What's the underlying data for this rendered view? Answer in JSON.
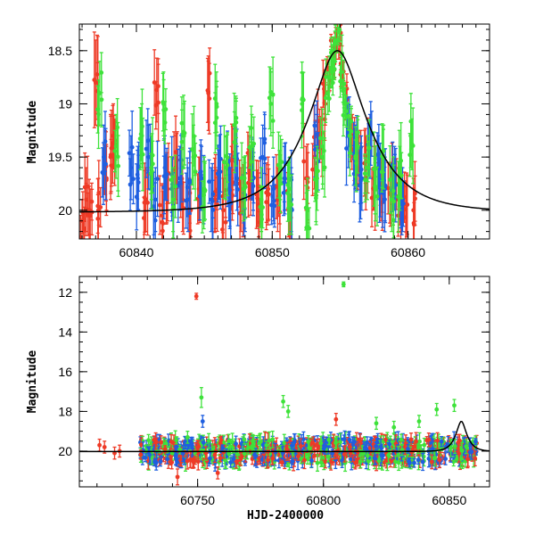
{
  "chart_data": [
    {
      "type": "scatter",
      "panel": "top",
      "title": "",
      "xlabel": "",
      "ylabel": "Magnitude",
      "xlim": [
        60835.8,
        60866
      ],
      "ylim": [
        20.27,
        18.25
      ],
      "y_inverted": true,
      "x_ticks": [
        60840,
        60850,
        60860
      ],
      "y_ticks": [
        18.5,
        19,
        19.5,
        20
      ],
      "x_tick_labels": [
        "60840",
        "60850",
        "60860"
      ],
      "y_tick_labels": [
        "18.5",
        "19",
        "19.5",
        "20"
      ],
      "grid": false,
      "legend": "none",
      "model_curve": {
        "color": "#000000",
        "baseline": 20.02,
        "peak_x": 60854.8,
        "peak_mag": 18.5,
        "description": "microlensing-like light curve fit"
      },
      "series": [
        {
          "color": "#ee3a26",
          "points": [
            [
              60836.0,
              20.1,
              0.2
            ],
            [
              60836.3,
              19.9,
              0.3
            ],
            [
              60836.6,
              20.05,
              0.25
            ],
            [
              60837.0,
              18.8,
              0.4
            ],
            [
              60837.2,
              20.0,
              0.3
            ],
            [
              60837.8,
              19.7,
              0.3
            ],
            [
              60838.1,
              19.5,
              0.4
            ],
            [
              60838.3,
              19.3,
              0.3
            ],
            [
              60840.7,
              19.9,
              0.3
            ],
            [
              60841.5,
              18.87,
              0.3
            ],
            [
              60841.9,
              20.05,
              0.3
            ],
            [
              60842.3,
              19.8,
              0.3
            ],
            [
              60842.9,
              19.6,
              0.3
            ],
            [
              60843.4,
              19.9,
              0.3
            ],
            [
              60844.0,
              20.0,
              0.25
            ],
            [
              60844.6,
              19.8,
              0.3
            ],
            [
              60845.3,
              18.9,
              0.35
            ],
            [
              60845.8,
              19.9,
              0.3
            ],
            [
              60846.4,
              20.0,
              0.3
            ],
            [
              60847.0,
              19.7,
              0.3
            ],
            [
              60847.7,
              19.9,
              0.3
            ],
            [
              60848.3,
              19.6,
              0.3
            ],
            [
              60849.0,
              19.95,
              0.3
            ],
            [
              60849.7,
              19.8,
              0.3
            ],
            [
              60850.4,
              19.9,
              0.3
            ],
            [
              60851.2,
              20.0,
              0.25
            ],
            [
              60852.5,
              19.7,
              0.3
            ],
            [
              60853.1,
              19.5,
              0.3
            ],
            [
              60853.5,
              19.3,
              0.25
            ],
            [
              60853.9,
              19.0,
              0.2
            ],
            [
              60854.2,
              18.75,
              0.1
            ],
            [
              60854.5,
              18.55,
              0.08
            ],
            [
              60854.7,
              18.5,
              0.08
            ],
            [
              60854.9,
              18.5,
              0.08
            ],
            [
              60855.2,
              18.7,
              0.1
            ],
            [
              60855.5,
              19.0,
              0.15
            ],
            [
              60855.9,
              19.3,
              0.2
            ],
            [
              60856.4,
              19.5,
              0.25
            ],
            [
              60856.9,
              19.6,
              0.3
            ],
            [
              60857.5,
              19.7,
              0.3
            ],
            [
              60858.0,
              19.8,
              0.3
            ],
            [
              60858.7,
              19.85,
              0.3
            ],
            [
              60859.3,
              19.9,
              0.3
            ],
            [
              60859.9,
              19.95,
              0.3
            ],
            [
              60860.4,
              20.0,
              0.3
            ]
          ]
        },
        {
          "color": "#1f5fe0",
          "points": [
            [
              60837.6,
              19.5,
              0.3
            ],
            [
              60839.6,
              19.6,
              0.3
            ],
            [
              60840.1,
              19.7,
              0.3
            ],
            [
              60840.9,
              19.5,
              0.3
            ],
            [
              60841.4,
              19.9,
              0.3
            ],
            [
              60842.1,
              19.6,
              0.3
            ],
            [
              60842.6,
              19.8,
              0.3
            ],
            [
              60843.2,
              19.7,
              0.3
            ],
            [
              60843.8,
              19.9,
              0.3
            ],
            [
              60844.8,
              19.7,
              0.3
            ],
            [
              60845.5,
              19.9,
              0.3
            ],
            [
              60846.1,
              19.6,
              0.3
            ],
            [
              60846.8,
              19.8,
              0.3
            ],
            [
              60847.4,
              19.7,
              0.3
            ],
            [
              60848.0,
              19.9,
              0.3
            ],
            [
              60848.6,
              19.7,
              0.3
            ],
            [
              60849.3,
              19.5,
              0.3
            ],
            [
              60850.1,
              19.8,
              0.3
            ],
            [
              60850.9,
              19.7,
              0.3
            ],
            [
              60851.4,
              19.9,
              0.3
            ],
            [
              60853.3,
              19.4,
              0.3
            ],
            [
              60855.6,
              19.3,
              0.3
            ],
            [
              60856.1,
              19.5,
              0.3
            ],
            [
              60856.6,
              19.7,
              0.3
            ],
            [
              60857.2,
              19.4,
              0.3
            ],
            [
              60857.8,
              19.6,
              0.3
            ],
            [
              60858.3,
              19.8,
              0.3
            ],
            [
              60859.0,
              19.7,
              0.3
            ],
            [
              60859.6,
              19.9,
              0.3
            ]
          ]
        },
        {
          "color": "#3ee23a",
          "points": [
            [
              60837.3,
              18.9,
              0.3
            ],
            [
              60838.5,
              19.4,
              0.3
            ],
            [
              60840.4,
              19.3,
              0.3
            ],
            [
              60841.1,
              19.6,
              0.3
            ],
            [
              60842.0,
              19.0,
              0.3
            ],
            [
              60842.7,
              19.9,
              0.3
            ],
            [
              60843.5,
              19.3,
              0.3
            ],
            [
              60844.2,
              19.5,
              0.3
            ],
            [
              60845.0,
              19.8,
              0.3
            ],
            [
              60845.9,
              19.0,
              0.3
            ],
            [
              60846.6,
              19.6,
              0.3
            ],
            [
              60847.2,
              19.2,
              0.3
            ],
            [
              60847.9,
              19.8,
              0.3
            ],
            [
              60848.5,
              19.4,
              0.3
            ],
            [
              60849.2,
              19.9,
              0.3
            ],
            [
              60849.9,
              19.0,
              0.3
            ],
            [
              60850.6,
              19.6,
              0.3
            ],
            [
              60851.3,
              19.8,
              0.3
            ],
            [
              60852.2,
              19.0,
              0.3
            ],
            [
              60852.6,
              20.0,
              0.3
            ],
            [
              60853.3,
              19.7,
              0.3
            ],
            [
              60853.7,
              19.5,
              0.3
            ],
            [
              60854.1,
              18.9,
              0.2
            ],
            [
              60854.4,
              18.7,
              0.15
            ],
            [
              60854.6,
              18.6,
              0.15
            ],
            [
              60854.8,
              18.4,
              0.12
            ],
            [
              60855.1,
              18.7,
              0.15
            ],
            [
              60855.3,
              19.0,
              0.2
            ],
            [
              60855.7,
              19.3,
              0.2
            ],
            [
              60856.3,
              19.4,
              0.25
            ],
            [
              60857.0,
              19.6,
              0.3
            ],
            [
              60857.6,
              19.8,
              0.3
            ],
            [
              60858.2,
              19.5,
              0.3
            ],
            [
              60858.8,
              19.9,
              0.3
            ],
            [
              60859.4,
              19.7,
              0.3
            ],
            [
              60860.2,
              19.3,
              0.3
            ]
          ]
        }
      ]
    },
    {
      "type": "scatter",
      "panel": "bottom",
      "title": "",
      "xlabel": "HJD-2400000",
      "ylabel": "Magnitude",
      "xlim": [
        60703,
        60866
      ],
      "ylim": [
        21.8,
        11.2
      ],
      "y_inverted": true,
      "x_ticks": [
        60750,
        60800,
        60850
      ],
      "y_ticks": [
        12,
        14,
        16,
        18,
        20
      ],
      "x_tick_labels": [
        "60750",
        "60800",
        "60850"
      ],
      "y_tick_labels": [
        "12",
        "14",
        "16",
        "18",
        "20"
      ],
      "grid": false,
      "legend": "none",
      "model_curve": {
        "color": "#000000",
        "baseline": 20.02,
        "peak_x": 60854.8,
        "peak_mag": 18.5
      },
      "outliers": [
        {
          "x": 60749.5,
          "y": 12.2,
          "err": 0.15,
          "color": "#ee3a26"
        },
        {
          "x": 60808.0,
          "y": 11.6,
          "err": 0.12,
          "color": "#3ee23a"
        },
        {
          "x": 60751.5,
          "y": 17.3,
          "err": 0.5,
          "color": "#3ee23a"
        },
        {
          "x": 60752.0,
          "y": 18.5,
          "err": 0.3,
          "color": "#1f5fe0"
        },
        {
          "x": 60746.0,
          "y": 19.3,
          "err": 0.3,
          "color": "#3ee23a"
        },
        {
          "x": 60784.0,
          "y": 17.5,
          "err": 0.3,
          "color": "#3ee23a"
        },
        {
          "x": 60786.0,
          "y": 18.0,
          "err": 0.3,
          "color": "#3ee23a"
        },
        {
          "x": 60805.0,
          "y": 18.4,
          "err": 0.3,
          "color": "#ee3a26"
        },
        {
          "x": 60821.0,
          "y": 18.6,
          "err": 0.3,
          "color": "#3ee23a"
        },
        {
          "x": 60828.0,
          "y": 18.8,
          "err": 0.3,
          "color": "#3ee23a"
        },
        {
          "x": 60838.0,
          "y": 18.5,
          "err": 0.3,
          "color": "#3ee23a"
        },
        {
          "x": 60845.0,
          "y": 17.9,
          "err": 0.3,
          "color": "#3ee23a"
        },
        {
          "x": 60852.0,
          "y": 17.7,
          "err": 0.3,
          "color": "#3ee23a"
        },
        {
          "x": 60742.0,
          "y": 21.3,
          "err": 0.4,
          "color": "#ee3a26"
        },
        {
          "x": 60758.0,
          "y": 21.1,
          "err": 0.3,
          "color": "#ee3a26"
        },
        {
          "x": 60711.0,
          "y": 19.7,
          "err": 0.3,
          "color": "#ee3a26"
        },
        {
          "x": 60713.0,
          "y": 19.8,
          "err": 0.3,
          "color": "#ee3a26"
        },
        {
          "x": 60717.0,
          "y": 20.1,
          "err": 0.3,
          "color": "#ee3a26"
        },
        {
          "x": 60719.0,
          "y": 20.0,
          "err": 0.3,
          "color": "#ee3a26"
        }
      ],
      "dense_band": {
        "x_range": [
          60727,
          60861
        ],
        "center_mag": 20.0,
        "spread_mag": 0.6,
        "colors": [
          "#3ee23a",
          "#1f5fe0",
          "#ee3a26"
        ]
      }
    }
  ]
}
